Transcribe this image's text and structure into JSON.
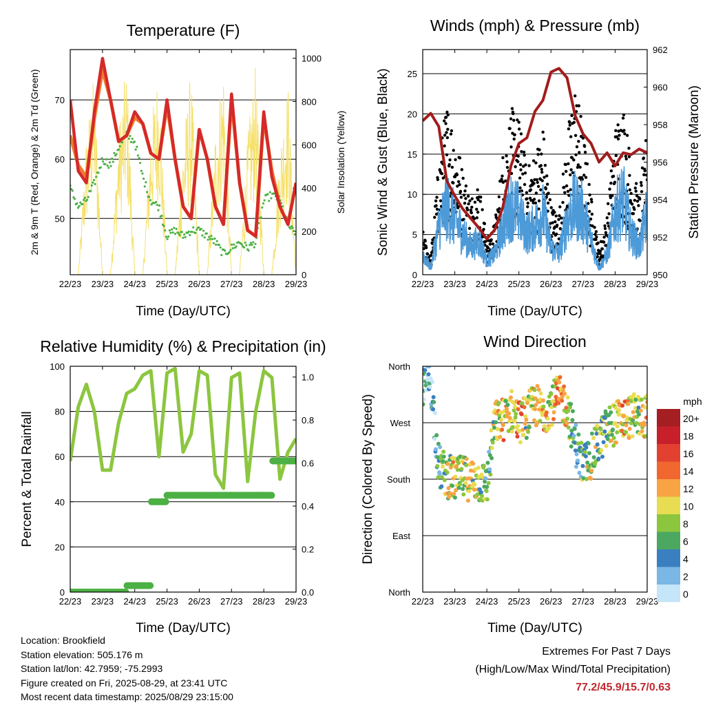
{
  "colors": {
    "temp2m": "#d42a2a",
    "temp9m": "#f07a2a",
    "dewpoint": "#4cb045",
    "solar": "#f5e06a",
    "wind": "#4d9ad8",
    "gust": "#000000",
    "pressure": "#a21c1c",
    "rh": "#8cc63f",
    "precip": "#4cb045",
    "extremes": "#c0272d"
  },
  "time_ticks": [
    "22/23",
    "23/23",
    "24/23",
    "25/23",
    "26/23",
    "27/23",
    "28/23",
    "29/23"
  ],
  "chart_data": [
    {
      "id": "temperature",
      "type": "line",
      "title": "Temperature (F)",
      "xlabel": "Time (Day/UTC)",
      "ylabel": "2m & 9m T (Red, Orange) & 2m Td (Green)",
      "y2label": "Solar Insolation (Yellow)",
      "ylim": [
        40.5,
        78.5
      ],
      "yticks": [
        50,
        60,
        70
      ],
      "y2lim": [
        0,
        1040
      ],
      "y2ticks": [
        0,
        200,
        400,
        600,
        800,
        1000
      ],
      "grid": true,
      "x": [
        0,
        0.25,
        0.5,
        0.75,
        1,
        1.25,
        1.5,
        1.75,
        2,
        2.25,
        2.5,
        2.75,
        3,
        3.25,
        3.5,
        3.75,
        4,
        4.25,
        4.5,
        4.75,
        5,
        5.25,
        5.5,
        5.75,
        6,
        6.25,
        6.5,
        6.75,
        7
      ],
      "series": [
        {
          "name": "2m T",
          "values": [
            70,
            58,
            56,
            68,
            77,
            70,
            63,
            64,
            68,
            66,
            61,
            60,
            70,
            60,
            52,
            50,
            65,
            60,
            52,
            49,
            71,
            56,
            48,
            47,
            68,
            57,
            52,
            49,
            56
          ]
        },
        {
          "name": "9m T",
          "values": [
            64,
            59,
            57,
            67,
            75,
            70,
            63,
            64,
            67,
            66,
            61,
            60,
            69,
            60,
            52,
            50,
            65,
            60,
            52,
            49,
            70,
            56,
            48,
            47,
            67,
            58,
            52,
            49,
            56
          ]
        },
        {
          "name": "2m Td",
          "values": [
            55,
            52,
            53,
            56,
            60,
            59,
            62,
            64,
            63,
            57,
            53,
            52,
            47,
            48,
            47,
            48,
            48,
            47,
            46,
            44,
            45,
            46,
            45,
            46,
            53,
            54,
            53,
            49,
            47
          ]
        },
        {
          "name": "Solar",
          "values": [
            0,
            0,
            650,
            950,
            0,
            0,
            680,
            980,
            0,
            0,
            700,
            980,
            0,
            0,
            620,
            960,
            0,
            0,
            680,
            1000,
            0,
            0,
            650,
            980,
            0,
            0,
            600,
            900,
            0
          ]
        }
      ]
    },
    {
      "id": "winds",
      "type": "scatter",
      "title": "Winds (mph) & Pressure (mb)",
      "xlabel": "Time (Day/UTC)",
      "ylabel": "Sonic Wind & Gust (Blue, Black)",
      "y2label": "Station Pressure (Maroon)",
      "ylim": [
        0,
        28
      ],
      "yticks": [
        0,
        5,
        10,
        15,
        20,
        25
      ],
      "y2lim": [
        950,
        962
      ],
      "y2ticks": [
        950,
        952,
        954,
        956,
        958,
        960,
        962
      ],
      "grid": true,
      "x": [
        0,
        0.25,
        0.5,
        0.75,
        1,
        1.25,
        1.5,
        1.75,
        2,
        2.25,
        2.5,
        2.75,
        3,
        3.25,
        3.5,
        3.75,
        4,
        4.25,
        4.5,
        4.75,
        5,
        5.25,
        5.5,
        5.75,
        6,
        6.25,
        6.5,
        6.75,
        7
      ],
      "series": [
        {
          "name": "Sonic Wind",
          "values": [
            3,
            1,
            7,
            10,
            8,
            6,
            4,
            5,
            2,
            3,
            7,
            10,
            9,
            6,
            7,
            9,
            4,
            3,
            8,
            10,
            9,
            5,
            1,
            3,
            9,
            11,
            6,
            4,
            9
          ]
        },
        {
          "name": "Gust",
          "values": [
            5,
            2,
            13,
            20,
            17,
            12,
            9,
            11,
            4,
            6,
            14,
            19,
            18,
            12,
            14,
            17,
            8,
            7,
            16,
            22,
            17,
            9,
            3,
            7,
            17,
            20,
            13,
            9,
            17
          ]
        },
        {
          "name": "Pressure",
          "values": [
            958.2,
            958.6,
            957.9,
            955.0,
            954.2,
            953.5,
            953.0,
            952.5,
            951.9,
            952.4,
            953.6,
            955.8,
            957.0,
            957.3,
            958.7,
            959.3,
            960.8,
            961.0,
            960.5,
            958.5,
            957.5,
            957.0,
            956.0,
            956.5,
            955.8,
            956.5,
            956.4,
            956.7,
            956.5
          ]
        }
      ]
    },
    {
      "id": "rh_precip",
      "type": "line",
      "title": "Relative Humidity (%) & Precipitation (in)",
      "xlabel": "Time (Day/UTC)",
      "ylabel": "Percent & Total Rainfall",
      "ylim": [
        0,
        100
      ],
      "yticks": [
        0,
        20,
        40,
        60,
        80,
        100
      ],
      "y2lim": [
        0,
        1.05
      ],
      "y2ticks": [
        0.0,
        0.2,
        0.4,
        0.6,
        0.8,
        1.0
      ],
      "grid": true,
      "x": [
        0,
        0.25,
        0.5,
        0.75,
        1,
        1.25,
        1.5,
        1.75,
        2,
        2.25,
        2.5,
        2.75,
        3,
        3.25,
        3.5,
        3.75,
        4,
        4.25,
        4.5,
        4.75,
        5,
        5.25,
        5.5,
        5.75,
        6,
        6.25,
        6.5,
        6.75,
        7
      ],
      "series": [
        {
          "name": "RH",
          "values": [
            58,
            82,
            92,
            80,
            54,
            54,
            75,
            88,
            90,
            96,
            98,
            60,
            97,
            99,
            62,
            70,
            98,
            96,
            52,
            46,
            95,
            97,
            49,
            80,
            98,
            95,
            50,
            62,
            68
          ]
        },
        {
          "name": "Precipitation",
          "values": [
            0,
            0,
            0,
            0,
            0,
            0,
            0,
            0.03,
            0.03,
            0.03,
            0.42,
            0.42,
            0.45,
            0.45,
            0.45,
            0.45,
            0.45,
            0.45,
            0.45,
            0.45,
            0.45,
            0.45,
            0.45,
            0.45,
            0.45,
            0.61,
            0.61,
            0.61,
            0.61
          ]
        }
      ]
    },
    {
      "id": "wind_direction",
      "type": "scatter",
      "title": "Wind Direction",
      "xlabel": "Time (Day/UTC)",
      "ylabel": "Direction (Colored By Speed)",
      "ylim": [
        0,
        360
      ],
      "ytick_labels": [
        "North",
        "East",
        "South",
        "West",
        "North"
      ],
      "grid": true,
      "colorbar_title": "mph",
      "colorbar_labels": [
        "20+",
        "18",
        "16",
        "14",
        "12",
        "10",
        "8",
        "6",
        "4",
        "2",
        "0"
      ],
      "colorbar_colors": [
        "#a51e22",
        "#c8202a",
        "#e24130",
        "#f0672f",
        "#f8a445",
        "#e8dd52",
        "#8cc63f",
        "#4ca860",
        "#3a7fc0",
        "#7ab7e4",
        "#c5e5f8"
      ],
      "x": [
        0,
        0.25,
        0.5,
        0.75,
        1,
        1.25,
        1.5,
        1.75,
        2,
        2.25,
        2.5,
        2.75,
        3,
        3.25,
        3.5,
        3.75,
        4,
        4.25,
        4.5,
        4.75,
        5,
        5.25,
        5.5,
        5.75,
        6,
        6.25,
        6.5,
        6.75,
        7
      ],
      "direction": [
        330,
        340,
        200,
        185,
        180,
        182,
        180,
        178,
        170,
        270,
        275,
        290,
        272,
        280,
        300,
        285,
        300,
        310,
        295,
        240,
        200,
        215,
        240,
        260,
        270,
        275,
        280,
        282,
        280
      ],
      "speed": [
        3,
        2,
        4,
        8,
        10,
        8,
        9,
        8,
        5,
        8,
        12,
        8,
        14,
        8,
        10,
        12,
        9,
        14,
        10,
        2,
        7,
        9,
        6,
        8,
        10,
        12,
        10,
        8,
        12
      ]
    }
  ],
  "info": {
    "location": "Location: Brookfield",
    "elevation": "Station elevation: 505.176 m",
    "latlon": "Station lat/lon: 42.7959; -75.2993",
    "created": "Figure created on Fri, 2025-08-29, at 23:41 UTC",
    "recent": "Most recent data timestamp: 2025/08/29 23:15:00"
  },
  "extremes": {
    "title": "Extremes For Past 7 Days",
    "subtitle": "(High/Low/Max Wind/Total Precipitation)",
    "values": "77.2/45.9/15.7/0.63"
  }
}
